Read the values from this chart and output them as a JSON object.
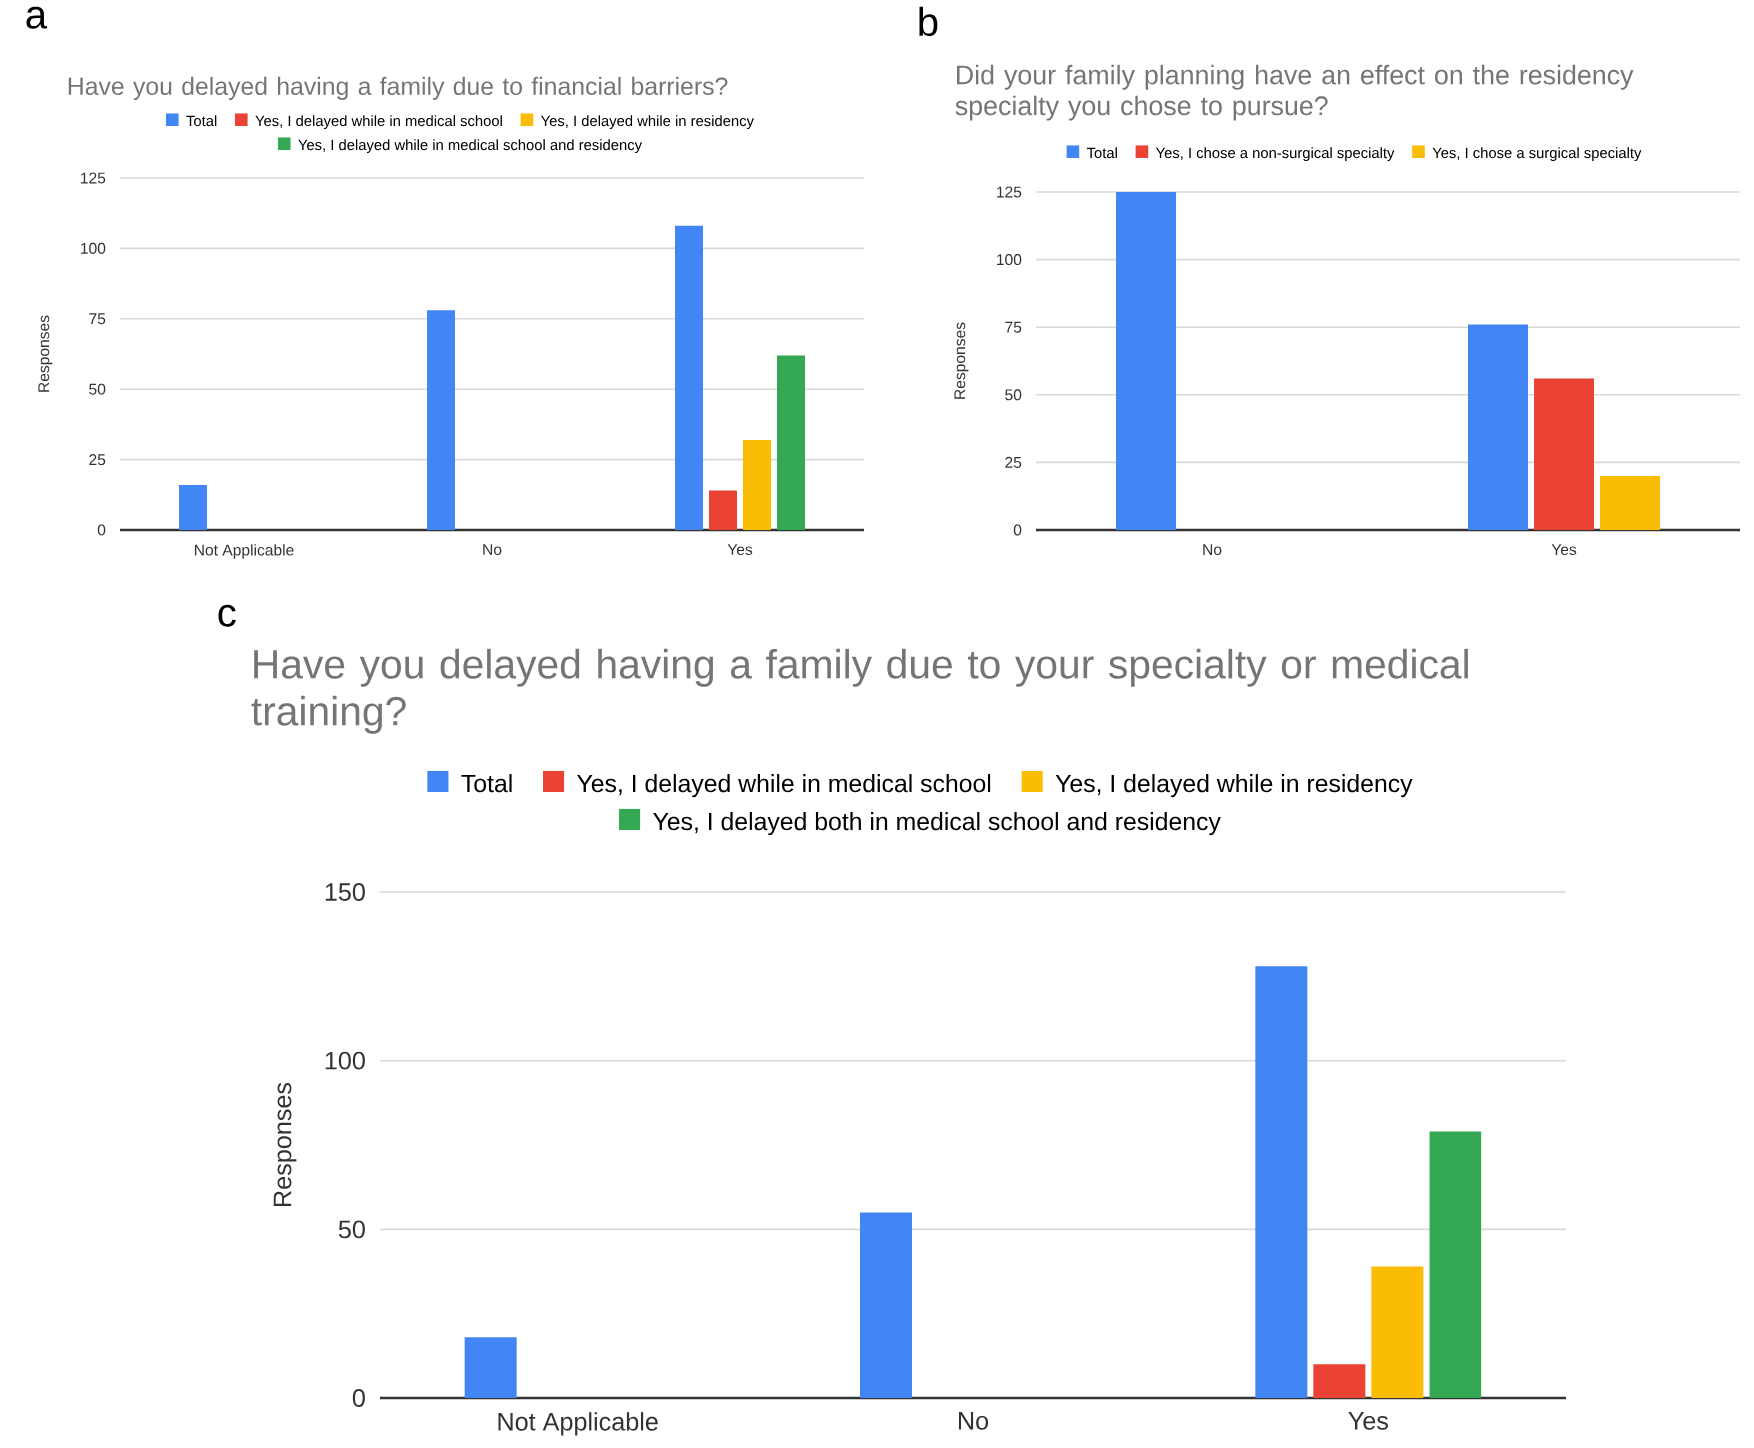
{
  "chart_data": [
    {
      "type": "bar",
      "title": "Have you delayed having a family due to financial barriers?",
      "annotations": [
        "a"
      ],
      "ylabel": "Responses",
      "categories": [
        "Not Applicable",
        "No",
        "Yes"
      ],
      "series": [
        {
          "name": "Total",
          "color": "#4285f4",
          "values": [
            16,
            78,
            108
          ]
        },
        {
          "name": "Yes, I delayed while in medical school",
          "color": "#ea4335",
          "values": [
            null,
            null,
            14
          ]
        },
        {
          "name": "Yes, I delayed while in residency",
          "color": "#fbbc04",
          "values": [
            null,
            null,
            32
          ]
        },
        {
          "name": "Yes, I delayed while in medical school and residency",
          "color": "#34a853",
          "values": [
            null,
            null,
            62
          ]
        }
      ],
      "ylim": [
        0,
        125
      ],
      "yticks": [
        0,
        25,
        50,
        75,
        100,
        125
      ],
      "grid": "y",
      "legend": "top"
    },
    {
      "type": "bar",
      "title": "Did your family planning have an effect on the residency specialty you chose to pursue?",
      "annotations": [
        "b"
      ],
      "ylabel": "Responses",
      "categories": [
        "No",
        "Yes"
      ],
      "series": [
        {
          "name": "Total",
          "color": "#4285f4",
          "values": [
            125,
            76
          ]
        },
        {
          "name": "Yes, I chose a non-surgical specialty",
          "color": "#ea4335",
          "values": [
            null,
            56
          ]
        },
        {
          "name": "Yes, I chose a surgical specialty",
          "color": "#fbbc04",
          "values": [
            null,
            20
          ]
        }
      ],
      "ylim": [
        0,
        125
      ],
      "yticks": [
        0,
        25,
        50,
        75,
        100,
        125
      ],
      "grid": "y",
      "legend": "top"
    },
    {
      "type": "bar",
      "title": "Have you delayed having a family due to your specialty or medical training?",
      "annotations": [
        "c"
      ],
      "ylabel": "Responses",
      "categories": [
        "Not Applicable",
        "No",
        "Yes"
      ],
      "series": [
        {
          "name": "Total",
          "color": "#4285f4",
          "values": [
            18,
            55,
            128
          ]
        },
        {
          "name": "Yes, I delayed while in medical school",
          "color": "#ea4335",
          "values": [
            null,
            null,
            10
          ]
        },
        {
          "name": "Yes, I delayed while in residency",
          "color": "#fbbc04",
          "values": [
            null,
            null,
            39
          ]
        },
        {
          "name": "Yes, I delayed both in medical school and residency",
          "color": "#34a853",
          "values": [
            null,
            null,
            79
          ]
        }
      ],
      "ylim": [
        0,
        150
      ],
      "yticks": [
        0,
        50,
        100,
        150
      ],
      "grid": "y",
      "legend": "top"
    }
  ]
}
